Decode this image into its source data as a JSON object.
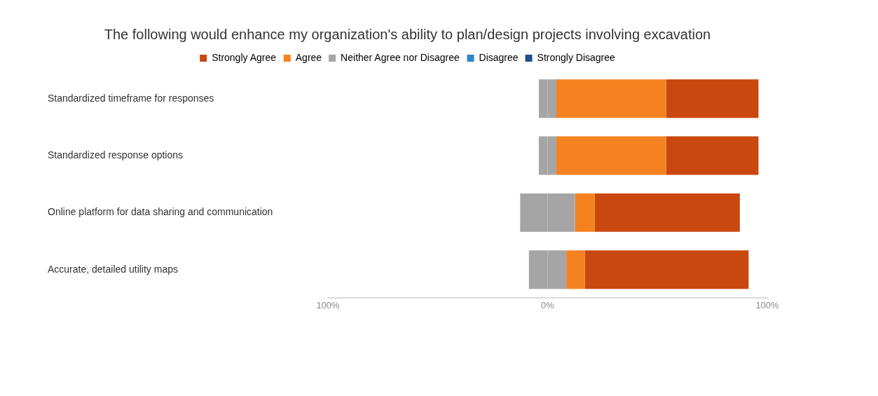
{
  "chart_data": {
    "type": "bar",
    "orientation": "horizontal",
    "stacked": true,
    "title": "The following would enhance my organization's ability to plan/design projects involving excavation",
    "categories": [
      "Standardized timeframe for responses",
      "Standardized response options",
      "Online platform for data sharing and communication",
      "Accurate, detailed utility maps"
    ],
    "series": [
      {
        "name": "Neither Agree nor Disagree",
        "color": "#a5a5a5",
        "values": [
          -4,
          -4,
          -12.5,
          -8.5
        ]
      },
      {
        "color": "#a5a5a5",
        "values": [
          4,
          4,
          12.5,
          8.5
        ]
      },
      {
        "name": "Agree",
        "color": "#f58220",
        "values": [
          50,
          50,
          9,
          8.5
        ]
      },
      {
        "name": "Strongly Agree",
        "color": "#c9480f",
        "values": [
          42,
          42,
          66,
          74.5
        ]
      },
      {
        "name": "Disagree",
        "color": "#2e86c8",
        "values": [
          0,
          0,
          0,
          0
        ]
      },
      {
        "name": "Strongly Disagree",
        "color": "#1f4e8c",
        "values": [
          0,
          0,
          0,
          0
        ]
      }
    ],
    "xlim": [
      -100,
      100
    ],
    "xticks": [
      {
        "value": -100,
        "label": "100%"
      },
      {
        "value": 0,
        "label": "0%"
      },
      {
        "value": 100,
        "label": "100%"
      }
    ],
    "grid": false,
    "legend": "top"
  }
}
